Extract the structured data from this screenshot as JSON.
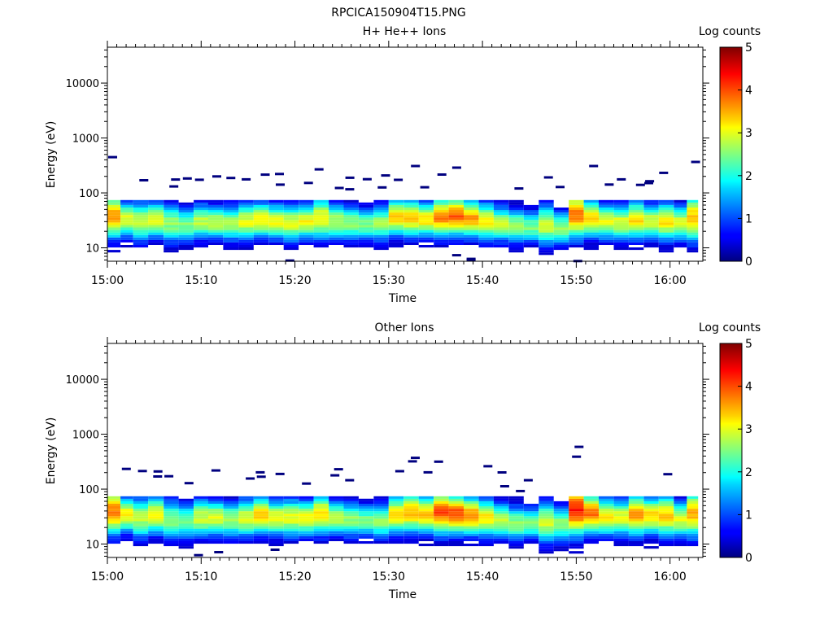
{
  "figure_title": "RPCICA150904T15.PNG",
  "colorbar_label": "Log counts",
  "chart_data": [
    {
      "type": "heatmap",
      "title": "H+ He++ Ions",
      "xlabel": "Time",
      "ylabel": "Energy (eV)",
      "x_ticks": [
        "15:00",
        "15:10",
        "15:20",
        "15:30",
        "15:40",
        "15:50",
        "16:00"
      ],
      "x_tick_minutes": [
        0,
        10,
        20,
        30,
        40,
        50,
        60
      ],
      "xlim_minutes": [
        0,
        63.5
      ],
      "y_scale": "log",
      "y_ticks": [
        "10",
        "100",
        "1000",
        "10000"
      ],
      "y_tick_values": [
        10,
        100,
        1000,
        10000
      ],
      "ylim": [
        5.7,
        45000
      ],
      "colorbar": {
        "label": "Log counts",
        "ticks": [
          "0",
          "1",
          "2",
          "3",
          "4",
          "5"
        ],
        "range": [
          0,
          5
        ]
      },
      "time_bin_minutes": [
        0.8,
        2.0,
        3.5,
        5.2,
        6.8,
        8.4,
        10.0,
        11.5,
        13.2,
        14.8,
        16.4,
        18.0,
        19.6,
        21.2,
        22.8,
        24.4,
        26.0,
        27.6,
        29.2,
        30.8,
        32.4,
        34.0,
        35.6,
        37.2,
        38.8,
        40.4,
        42.0,
        43.6,
        45.2,
        46.8,
        48.4,
        50.0,
        51.6,
        53.2,
        54.8,
        56.4,
        58.0,
        59.6,
        61.2,
        62.4
      ],
      "band_center_ev": [
        38,
        33,
        30,
        32,
        28,
        26,
        30,
        29,
        28,
        30,
        32,
        30,
        28,
        30,
        34,
        30,
        28,
        27,
        28,
        36,
        35,
        33,
        36,
        38,
        34,
        30,
        27,
        25,
        24,
        26,
        23,
        40,
        34,
        30,
        29,
        32,
        30,
        30,
        28,
        35
      ],
      "band_peak_log": [
        3.6,
        3.0,
        2.8,
        3.1,
        2.6,
        2.5,
        2.8,
        2.9,
        2.7,
        3.0,
        3.2,
        3.1,
        3.0,
        3.1,
        3.2,
        2.8,
        2.6,
        2.5,
        2.7,
        3.3,
        3.4,
        3.3,
        3.7,
        3.9,
        3.6,
        3.2,
        2.8,
        2.6,
        2.5,
        2.9,
        2.6,
        3.8,
        3.3,
        3.0,
        3.0,
        3.3,
        3.0,
        3.2,
        3.0,
        3.4
      ],
      "band_halfwidth_dex": [
        0.28,
        0.22,
        0.25,
        0.22,
        0.24,
        0.22,
        0.22,
        0.2,
        0.22,
        0.24,
        0.22,
        0.22,
        0.23,
        0.22,
        0.26,
        0.22,
        0.22,
        0.2,
        0.22,
        0.24,
        0.24,
        0.22,
        0.26,
        0.25,
        0.24,
        0.24,
        0.22,
        0.22,
        0.2,
        0.26,
        0.22,
        0.3,
        0.24,
        0.22,
        0.22,
        0.24,
        0.22,
        0.24,
        0.22,
        0.3
      ]
    },
    {
      "type": "heatmap",
      "title": "Other Ions",
      "xlabel": "Time",
      "ylabel": "Energy (eV)",
      "x_ticks": [
        "15:00",
        "15:10",
        "15:20",
        "15:30",
        "15:40",
        "15:50",
        "16:00"
      ],
      "x_tick_minutes": [
        0,
        10,
        20,
        30,
        40,
        50,
        60
      ],
      "xlim_minutes": [
        0,
        63.5
      ],
      "y_scale": "log",
      "y_ticks": [
        "10",
        "100",
        "1000",
        "10000"
      ],
      "y_tick_values": [
        10,
        100,
        1000,
        10000
      ],
      "ylim": [
        5.7,
        45000
      ],
      "colorbar": {
        "label": "Log counts",
        "ticks": [
          "0",
          "1",
          "2",
          "3",
          "4",
          "5"
        ],
        "range": [
          0,
          5
        ]
      },
      "time_bin_minutes": [
        0.8,
        2.0,
        3.5,
        5.2,
        6.8,
        8.4,
        10.0,
        11.5,
        13.2,
        14.8,
        16.4,
        18.0,
        19.6,
        21.2,
        22.8,
        24.4,
        26.0,
        27.6,
        29.2,
        30.8,
        32.4,
        34.0,
        35.6,
        37.2,
        38.8,
        40.4,
        42.0,
        43.6,
        45.2,
        46.8,
        48.4,
        50.0,
        51.6,
        53.2,
        54.8,
        56.4,
        58.0,
        59.6,
        61.2,
        62.4
      ],
      "band_center_ev": [
        40,
        34,
        30,
        34,
        28,
        26,
        30,
        30,
        28,
        30,
        33,
        30,
        30,
        30,
        35,
        30,
        28,
        27,
        26,
        34,
        38,
        35,
        38,
        36,
        33,
        30,
        27,
        24,
        24,
        25,
        23,
        42,
        36,
        32,
        30,
        34,
        33,
        33,
        28,
        36
      ],
      "band_peak_log": [
        3.8,
        3.2,
        2.8,
        3.2,
        2.6,
        2.5,
        2.9,
        3.0,
        2.7,
        3.0,
        3.4,
        3.1,
        3.0,
        3.2,
        3.3,
        2.8,
        2.6,
        2.5,
        2.6,
        3.3,
        3.5,
        3.4,
        4.0,
        4.0,
        3.7,
        3.2,
        2.8,
        2.6,
        2.5,
        2.9,
        2.6,
        4.3,
        3.8,
        3.2,
        3.1,
        3.6,
        3.3,
        3.4,
        3.0,
        3.5
      ],
      "band_halfwidth_dex": [
        0.3,
        0.22,
        0.26,
        0.24,
        0.24,
        0.22,
        0.24,
        0.22,
        0.22,
        0.24,
        0.24,
        0.22,
        0.24,
        0.22,
        0.26,
        0.22,
        0.22,
        0.2,
        0.22,
        0.24,
        0.26,
        0.24,
        0.28,
        0.26,
        0.24,
        0.24,
        0.22,
        0.22,
        0.2,
        0.26,
        0.22,
        0.32,
        0.26,
        0.24,
        0.22,
        0.26,
        0.24,
        0.26,
        0.22,
        0.3
      ]
    }
  ]
}
